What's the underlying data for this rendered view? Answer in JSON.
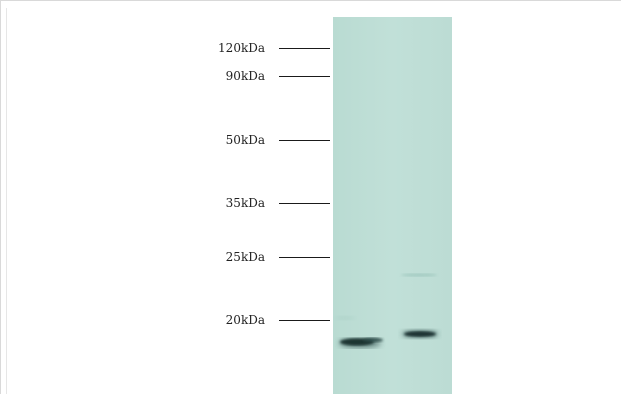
{
  "markers": [
    {
      "label": "120kDa"
    },
    {
      "label": "90kDa"
    },
    {
      "label": "50kDa"
    },
    {
      "label": "35kDa"
    },
    {
      "label": "25kDa"
    },
    {
      "label": "20kDa"
    }
  ],
  "colors": {
    "membrane": "#bfdfd6",
    "band": "#1f3a3a",
    "tick": "#1a1a1a",
    "text": "#222222"
  }
}
